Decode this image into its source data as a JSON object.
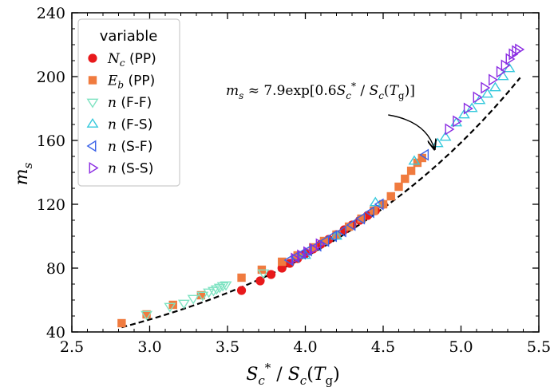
{
  "chart_data": {
    "type": "scatter",
    "xlabel": "S_c^* / S_c(T_g)",
    "xlabel_parts": {
      "a": "S",
      "a_sub": "c",
      "a_sup": "*",
      "slash": " / ",
      "b": "S",
      "b_sub": "c",
      "paren_open": "(",
      "c": "T",
      "c_sub": "g",
      "paren_close": ")"
    },
    "ylabel": "m_s",
    "ylabel_parts": {
      "main": "m",
      "sub": "s"
    },
    "xlim": [
      2.5,
      5.5
    ],
    "ylim": [
      40,
      240
    ],
    "xticks": [
      "2.5",
      "3.0",
      "3.5",
      "4.0",
      "4.5",
      "5.0",
      "5.5"
    ],
    "yticks": [
      "40",
      "80",
      "120",
      "160",
      "200",
      "240"
    ],
    "legend": {
      "title": "variable",
      "location": "upper-left",
      "entries": [
        {
          "symbol": "N",
          "sub": "c",
          "suffix": " (PP)"
        },
        {
          "symbol": "E",
          "sub": "b",
          "suffix": " (PP)"
        },
        {
          "symbol": "n",
          "sub": "",
          "suffix": " (F-F)"
        },
        {
          "symbol": "n",
          "sub": "",
          "suffix": " (F-S)"
        },
        {
          "symbol": "n",
          "sub": "",
          "suffix": " (S-F)"
        },
        {
          "symbol": "n",
          "sub": "",
          "suffix": " (S-S)"
        }
      ]
    },
    "annotation": {
      "lhs": "m",
      "lhs_sub": "s",
      "approx": " ≈ 7.9exp[0.6",
      "s1": "S",
      "s1_sub": "c",
      "s1_sup": "*",
      "slash": " / ",
      "s2": "S",
      "s2_sub": "c",
      "paren_open": "(",
      "t": "T",
      "t_sub": "g",
      "close": ")]",
      "arrow_points_to": [
        4.84,
        152
      ]
    },
    "fit": {
      "label": "7.9exp[0.6x]",
      "a": 7.9,
      "b": 0.6,
      "x_range": [
        2.82,
        5.38
      ],
      "style": "dashed",
      "color": "#000000"
    },
    "series": [
      {
        "name": "N_c (PP)",
        "marker": "circle",
        "color": "#e8191b",
        "filled": true,
        "points": [
          [
            3.59,
            66
          ],
          [
            3.71,
            72
          ],
          [
            3.78,
            76
          ],
          [
            3.85,
            80
          ],
          [
            3.9,
            83
          ],
          [
            3.95,
            86
          ],
          [
            4.0,
            89
          ],
          [
            4.05,
            92
          ],
          [
            4.1,
            95
          ],
          [
            4.15,
            98
          ],
          [
            4.2,
            101
          ],
          [
            4.25,
            104
          ],
          [
            4.3,
            107
          ],
          [
            4.35,
            110
          ],
          [
            4.4,
            113
          ],
          [
            4.45,
            116
          ],
          [
            4.5,
            120
          ]
        ]
      },
      {
        "name": "E_b (PP)",
        "marker": "square",
        "color": "#f07b3f",
        "filled": true,
        "points": [
          [
            2.82,
            45.5
          ],
          [
            2.98,
            51
          ],
          [
            3.15,
            57
          ],
          [
            3.33,
            63
          ],
          [
            3.59,
            74
          ],
          [
            3.72,
            79
          ],
          [
            3.85,
            84
          ],
          [
            3.95,
            88
          ],
          [
            4.05,
            93
          ],
          [
            4.12,
            97
          ],
          [
            4.2,
            101
          ],
          [
            4.28,
            106
          ],
          [
            4.36,
            111
          ],
          [
            4.44,
            116
          ],
          [
            4.5,
            120
          ],
          [
            4.55,
            125
          ],
          [
            4.6,
            131
          ],
          [
            4.64,
            136
          ],
          [
            4.68,
            141
          ],
          [
            4.72,
            146
          ],
          [
            4.75,
            149
          ]
        ]
      },
      {
        "name": "n (F-F)",
        "marker": "triangle-down",
        "color": "#7fe3c2",
        "filled": false,
        "points": [
          [
            2.98,
            51
          ],
          [
            3.13,
            56
          ],
          [
            3.22,
            58
          ],
          [
            3.28,
            61
          ],
          [
            3.34,
            63
          ],
          [
            3.38,
            65
          ],
          [
            3.41,
            66
          ],
          [
            3.43,
            67
          ],
          [
            3.45,
            68
          ],
          [
            3.47,
            69
          ],
          [
            3.49,
            69.5
          ],
          [
            3.73,
            77
          ]
        ]
      },
      {
        "name": "n (F-S)",
        "marker": "triangle-up",
        "color": "#35c9dc",
        "filled": false,
        "points": [
          [
            4.0,
            88
          ],
          [
            4.2,
            100
          ],
          [
            4.45,
            121
          ],
          [
            4.7,
            147
          ],
          [
            4.85,
            158
          ],
          [
            4.9,
            162
          ],
          [
            4.97,
            171
          ],
          [
            5.02,
            176
          ],
          [
            5.07,
            180
          ],
          [
            5.12,
            185
          ],
          [
            5.17,
            189
          ],
          [
            5.22,
            193
          ],
          [
            5.27,
            200
          ],
          [
            5.31,
            205
          ]
        ]
      },
      {
        "name": "n (S-F)",
        "marker": "triangle-left",
        "color": "#3a62e8",
        "filled": false,
        "points": [
          [
            3.9,
            85
          ],
          [
            3.94,
            87
          ],
          [
            3.98,
            89
          ],
          [
            4.02,
            91
          ],
          [
            4.08,
            94
          ],
          [
            4.13,
            97
          ],
          [
            4.18,
            100
          ],
          [
            4.24,
            103
          ],
          [
            4.3,
            107
          ],
          [
            4.36,
            111
          ],
          [
            4.42,
            115
          ],
          [
            4.48,
            120
          ],
          [
            4.77,
            151
          ]
        ]
      },
      {
        "name": "n (S-S)",
        "marker": "triangle-right",
        "color": "#8a2be2",
        "filled": false,
        "points": [
          [
            3.93,
            86
          ],
          [
            3.97,
            88
          ],
          [
            4.01,
            90
          ],
          [
            4.05,
            92
          ],
          [
            4.09,
            95
          ],
          [
            4.92,
            167
          ],
          [
            4.97,
            172
          ],
          [
            5.04,
            180
          ],
          [
            5.1,
            187
          ],
          [
            5.15,
            193
          ],
          [
            5.2,
            198
          ],
          [
            5.25,
            203
          ],
          [
            5.28,
            207
          ],
          [
            5.31,
            211
          ],
          [
            5.33,
            214
          ],
          [
            5.35,
            216
          ],
          [
            5.37,
            217
          ]
        ]
      }
    ]
  }
}
